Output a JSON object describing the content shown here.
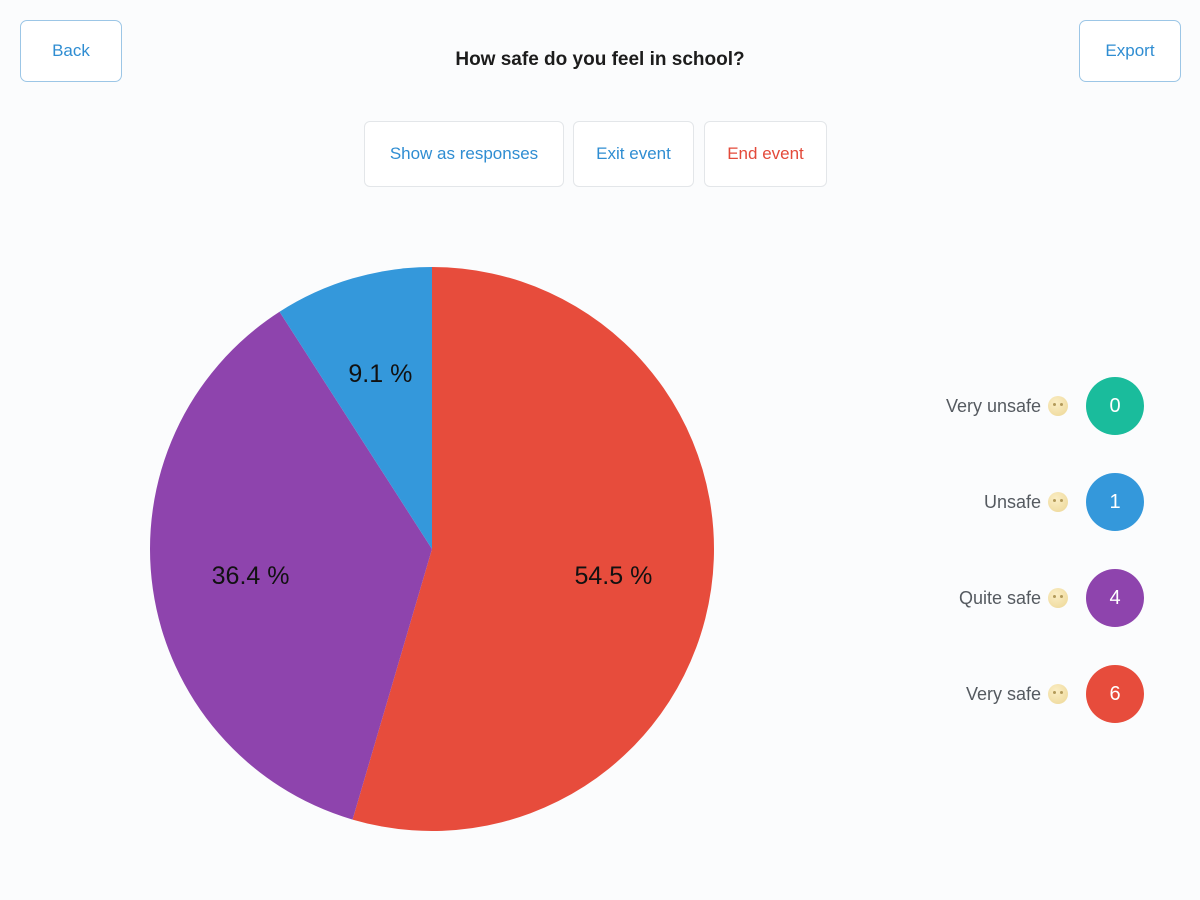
{
  "header": {
    "back_label": "Back",
    "export_label": "Export",
    "question": "How safe do you feel in school?"
  },
  "actions": {
    "show_responses_label": "Show as responses",
    "exit_event_label": "Exit event",
    "end_event_label": "End event"
  },
  "colors": {
    "accent": "#2f8dd2",
    "danger": "#e34a3a"
  },
  "legend": [
    {
      "label": "Very unsafe",
      "count": "0",
      "color": "#1abc9c",
      "icon": "sad-face-emoji-icon"
    },
    {
      "label": "Unsafe",
      "count": "1",
      "color": "#3498db",
      "icon": "neutral-face-emoji-icon"
    },
    {
      "label": "Quite safe",
      "count": "4",
      "color": "#8e44ad",
      "icon": "smiling-face-emoji-icon"
    },
    {
      "label": "Very safe",
      "count": "6",
      "color": "#e74c3c",
      "icon": "happy-face-emoji-icon"
    }
  ],
  "chart_data": {
    "type": "pie",
    "title": "How safe do you feel in school?",
    "slices": [
      {
        "label": "Very safe",
        "value": 6,
        "percent_label": "54.5 %",
        "color": "#e74c3c"
      },
      {
        "label": "Quite safe",
        "value": 4,
        "percent_label": "36.4 %",
        "color": "#8e44ad"
      },
      {
        "label": "Unsafe",
        "value": 1,
        "percent_label": "9.1 %",
        "color": "#3498db"
      },
      {
        "label": "Very unsafe",
        "value": 0,
        "percent_label": "0 %",
        "color": "#1abc9c"
      }
    ]
  }
}
